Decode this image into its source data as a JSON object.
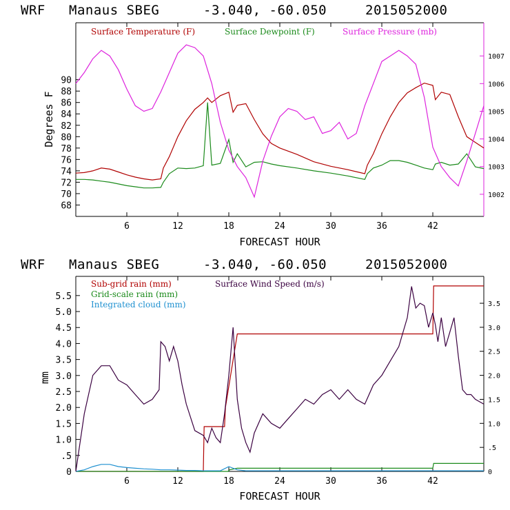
{
  "chart_data": [
    {
      "type": "line",
      "header": {
        "model": "WRF",
        "location": "Manaus SBEG",
        "coords": "-3.040, -60.050",
        "init": "2015052000"
      },
      "xlabel": "FORECAST HOUR",
      "ylabel": "Degrees F",
      "xlim": [
        0,
        48
      ],
      "ylim": [
        66,
        100
      ],
      "y2lim": [
        1001.2,
        1008.2
      ],
      "xticks": [
        6,
        12,
        18,
        24,
        30,
        36,
        42
      ],
      "yticks": [
        68,
        70,
        72,
        74,
        76,
        78,
        80,
        82,
        84,
        86,
        88,
        90
      ],
      "y2ticks": [
        1002,
        1003,
        1004,
        1005,
        1006,
        1007
      ],
      "series": [
        {
          "name": "Surface Temperature (F)",
          "color": "#b00000",
          "axis": "left",
          "x": [
            0,
            1,
            2,
            3,
            4,
            5,
            6,
            7,
            8,
            9,
            10,
            10.3,
            11,
            12,
            13,
            14,
            15,
            15.5,
            16,
            17,
            18,
            18.5,
            19,
            20,
            21,
            22,
            23,
            24,
            26,
            28,
            30,
            32,
            34,
            34.3,
            35,
            36,
            37,
            38,
            39,
            40,
            41,
            42,
            42.3,
            43,
            44,
            45,
            46,
            47,
            48
          ],
          "values": [
            73.6,
            73.7,
            74.0,
            74.5,
            74.3,
            73.8,
            73.3,
            72.9,
            72.6,
            72.4,
            72.6,
            74.5,
            76.5,
            80.0,
            82.8,
            84.8,
            86.0,
            86.8,
            86.0,
            87.2,
            87.8,
            84.3,
            85.5,
            85.8,
            83.0,
            80.5,
            78.8,
            78.0,
            76.9,
            75.6,
            74.8,
            74.2,
            73.5,
            75.0,
            77.0,
            80.5,
            83.5,
            86.0,
            87.7,
            88.6,
            89.4,
            89.0,
            86.5,
            87.8,
            87.4,
            83.5,
            80.0,
            79.0,
            78.0
          ]
        },
        {
          "name": "Surface Dewpoint (F)",
          "color": "#1a8a1a",
          "axis": "left",
          "x": [
            0,
            1,
            2,
            3,
            4,
            5,
            6,
            7,
            8,
            9,
            10,
            10.3,
            11,
            12,
            13,
            14,
            15,
            15.5,
            16,
            17,
            18,
            18.5,
            19,
            20,
            21,
            22,
            23,
            24,
            26,
            28,
            30,
            32,
            34,
            34.3,
            35,
            36,
            37,
            38,
            39,
            40,
            41,
            42,
            42.3,
            43,
            44,
            45,
            46,
            47,
            48
          ],
          "values": [
            72.5,
            72.5,
            72.4,
            72.2,
            72.0,
            71.7,
            71.4,
            71.2,
            71.0,
            71.0,
            71.1,
            72.0,
            73.5,
            74.5,
            74.4,
            74.5,
            74.9,
            86.0,
            75.0,
            75.3,
            79.5,
            75.5,
            77.0,
            74.7,
            75.5,
            75.6,
            75.2,
            74.9,
            74.5,
            74.0,
            73.6,
            73.1,
            72.5,
            73.5,
            74.5,
            75.0,
            75.8,
            75.8,
            75.5,
            75.0,
            74.5,
            74.2,
            75.2,
            75.5,
            75.0,
            75.2,
            77.0,
            74.7,
            74.4
          ]
        },
        {
          "name": "Surface Pressure (mb)",
          "color": "#dd22dd",
          "axis": "right",
          "x": [
            0,
            1,
            2,
            3,
            4,
            5,
            6,
            7,
            8,
            9,
            10,
            11,
            12,
            13,
            14,
            15,
            16,
            17,
            18,
            19,
            20,
            21,
            22,
            23,
            24,
            25,
            26,
            27,
            28,
            29,
            30,
            31,
            32,
            33,
            34,
            35,
            36,
            37,
            38,
            39,
            40,
            41,
            42,
            43,
            44,
            45,
            46,
            47,
            48
          ],
          "values": [
            1006.0,
            1006.4,
            1006.9,
            1007.2,
            1007.0,
            1006.5,
            1005.8,
            1005.2,
            1005.0,
            1005.1,
            1005.7,
            1006.4,
            1007.1,
            1007.4,
            1007.3,
            1007.0,
            1006.0,
            1004.6,
            1003.6,
            1003.0,
            1002.6,
            1001.9,
            1003.2,
            1004.1,
            1004.8,
            1005.1,
            1005.0,
            1004.7,
            1004.8,
            1004.2,
            1004.3,
            1004.6,
            1004.0,
            1004.2,
            1005.2,
            1006.0,
            1006.8,
            1007.0,
            1007.2,
            1007.0,
            1006.7,
            1005.5,
            1003.7,
            1003.0,
            1002.6,
            1002.3,
            1003.2,
            1004.2,
            1005.2
          ]
        }
      ]
    },
    {
      "type": "line",
      "header": {
        "model": "WRF",
        "location": "Manaus SBEG",
        "coords": "-3.040, -60.050",
        "init": "2015052000"
      },
      "xlabel": "FORECAST HOUR",
      "ylabel": "mm",
      "xlim": [
        0,
        48
      ],
      "ylim": [
        0,
        6.1
      ],
      "y2lim": [
        0,
        4.06
      ],
      "xticks": [
        6,
        12,
        18,
        24,
        30,
        36,
        42
      ],
      "yticks": [
        0,
        0.5,
        1.0,
        1.5,
        2.0,
        2.5,
        3.0,
        3.5,
        4.0,
        4.5,
        5.0,
        5.5
      ],
      "ytick_labels": [
        "0",
        ".5",
        "1.0",
        "1.5",
        "2.0",
        "2.5",
        "3.0",
        "3.5",
        "4.0",
        "4.5",
        "5.0",
        "5.5"
      ],
      "y2ticks": [
        0,
        0.5,
        1.0,
        1.5,
        2.0,
        2.5,
        3.0,
        3.5
      ],
      "y2tick_labels": [
        "0",
        ".5",
        "1.0",
        "1.5",
        "2.0",
        "2.5",
        "3.0",
        "3.5"
      ],
      "series": [
        {
          "name": "Sub-grid rain (mm)",
          "color": "#b00000",
          "axis": "left",
          "x": [
            0,
            15.0,
            15.1,
            17.5,
            17.6,
            19.0,
            19.1,
            42.0,
            42.1,
            48
          ],
          "values": [
            0,
            0,
            1.4,
            1.4,
            2.0,
            4.3,
            4.3,
            4.3,
            5.8,
            5.8
          ]
        },
        {
          "name": "Grid-scale rain (mm)",
          "color": "#1a8a1a",
          "axis": "left",
          "x": [
            0,
            17.9,
            18.1,
            19.0,
            42.0,
            42.1,
            48
          ],
          "values": [
            0,
            0,
            0.05,
            0.1,
            0.1,
            0.25,
            0.25
          ]
        },
        {
          "name": "Integrated cloud (mm)",
          "color": "#1e90d0",
          "axis": "left",
          "x": [
            0,
            1,
            2,
            3,
            4,
            5,
            6,
            7,
            8,
            9,
            10,
            11,
            12,
            13,
            14,
            15,
            16,
            17,
            18,
            19,
            20,
            21,
            24,
            30,
            36,
            42,
            48
          ],
          "values": [
            0,
            0.05,
            0.15,
            0.22,
            0.22,
            0.15,
            0.12,
            0.1,
            0.08,
            0.07,
            0.05,
            0.05,
            0.04,
            0.03,
            0.03,
            0.02,
            0.02,
            0.02,
            0.15,
            0.05,
            0.02,
            0.02,
            0.02,
            0.02,
            0.02,
            0.02,
            0.02
          ]
        },
        {
          "name": "Surface Wind Speed (m/s)",
          "color": "#3a0040",
          "axis": "right",
          "x": [
            0,
            1,
            2,
            3,
            4,
            5,
            6,
            7,
            8,
            9,
            9.8,
            10,
            10.5,
            11,
            11.5,
            12,
            12.5,
            13,
            14,
            15,
            15.5,
            16,
            16.5,
            17,
            17.5,
            18,
            18.5,
            19,
            19.5,
            20,
            20.5,
            21,
            22,
            23,
            24,
            25,
            26,
            27,
            28,
            29,
            30,
            31,
            32,
            33,
            34,
            35,
            36,
            37,
            38,
            39,
            39.5,
            40,
            40.5,
            41,
            41.5,
            42,
            42.3,
            42.6,
            43,
            43.5,
            44,
            44.5,
            45,
            45.5,
            46,
            46.5,
            47,
            48
          ],
          "values": [
            0,
            1.2,
            2.0,
            2.2,
            2.2,
            1.9,
            1.8,
            1.6,
            1.4,
            1.5,
            1.7,
            2.7,
            2.6,
            2.3,
            2.6,
            2.3,
            1.8,
            1.4,
            0.85,
            0.75,
            0.6,
            0.9,
            0.7,
            0.6,
            1.2,
            2.0,
            3.0,
            1.5,
            0.9,
            0.6,
            0.4,
            0.8,
            1.2,
            1.0,
            0.9,
            1.1,
            1.3,
            1.5,
            1.4,
            1.6,
            1.7,
            1.5,
            1.7,
            1.5,
            1.4,
            1.8,
            2.0,
            2.3,
            2.6,
            3.2,
            3.85,
            3.4,
            3.5,
            3.45,
            3.0,
            3.3,
            3.05,
            2.7,
            3.2,
            2.6,
            2.9,
            3.2,
            2.4,
            1.7,
            1.6,
            1.6,
            1.5,
            1.4
          ]
        }
      ]
    }
  ]
}
